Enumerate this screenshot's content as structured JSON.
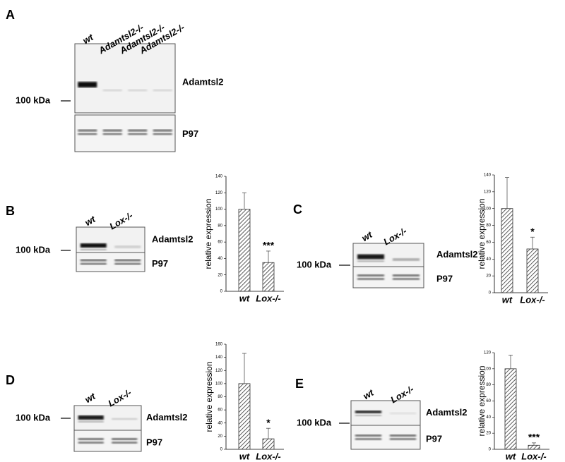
{
  "panels": [
    {
      "letter": "A",
      "lanes": [
        "wt",
        "Adamtsl2-/-",
        "Adamtsl2-/-",
        "Adamtsl2-/-"
      ],
      "marker": "100 kDa",
      "bands": [
        "Adamtsl2",
        "P97"
      ]
    },
    {
      "letter": "B",
      "lanes": [
        "wt",
        "Lox-/-"
      ],
      "marker": "100 kDa",
      "bands": [
        "Adamtsl2",
        "P97"
      ]
    },
    {
      "letter": "C",
      "lanes": [
        "wt",
        "Lox-/-"
      ],
      "marker": "100 kDa",
      "bands": [
        "Adamtsl2",
        "P97"
      ]
    },
    {
      "letter": "D",
      "lanes": [
        "wt",
        "Lox-/-"
      ],
      "marker": "100 kDa",
      "bands": [
        "Adamtsl2",
        "P97"
      ]
    },
    {
      "letter": "E",
      "lanes": [
        "wt",
        "Lox-/-"
      ],
      "marker": "100 kDa",
      "bands": [
        "Adamtsl2",
        "P97"
      ]
    }
  ],
  "chart_data": [
    {
      "type": "bar",
      "ylabel": "relative expression",
      "categories": [
        "wt",
        "Lox-/-"
      ],
      "values": [
        100,
        35
      ],
      "errors": [
        20,
        14
      ],
      "significance": "***",
      "ylim": [
        0,
        140
      ],
      "yticks": [
        0,
        20,
        40,
        60,
        80,
        100,
        120,
        140
      ]
    },
    {
      "type": "bar",
      "ylabel": "relative expression",
      "categories": [
        "wt",
        "Lox-/-"
      ],
      "values": [
        100,
        52
      ],
      "errors": [
        37,
        14
      ],
      "significance": "*",
      "ylim": [
        0,
        140
      ],
      "yticks": [
        0,
        20,
        40,
        60,
        80,
        100,
        120,
        140
      ]
    },
    {
      "type": "bar",
      "ylabel": "relative expression",
      "categories": [
        "wt",
        "Lox-/-"
      ],
      "values": [
        100,
        16
      ],
      "errors": [
        46,
        16
      ],
      "significance": "*",
      "ylim": [
        0,
        160
      ],
      "yticks": [
        0,
        20,
        40,
        60,
        80,
        100,
        120,
        140,
        160
      ]
    },
    {
      "type": "bar",
      "ylabel": "relative expression",
      "categories": [
        "wt",
        "Lox-/-"
      ],
      "values": [
        100,
        5
      ],
      "errors": [
        17,
        3
      ],
      "significance": "***",
      "ylim": [
        0,
        120
      ],
      "yticks": [
        0,
        20,
        40,
        60,
        80,
        100,
        120
      ]
    }
  ]
}
